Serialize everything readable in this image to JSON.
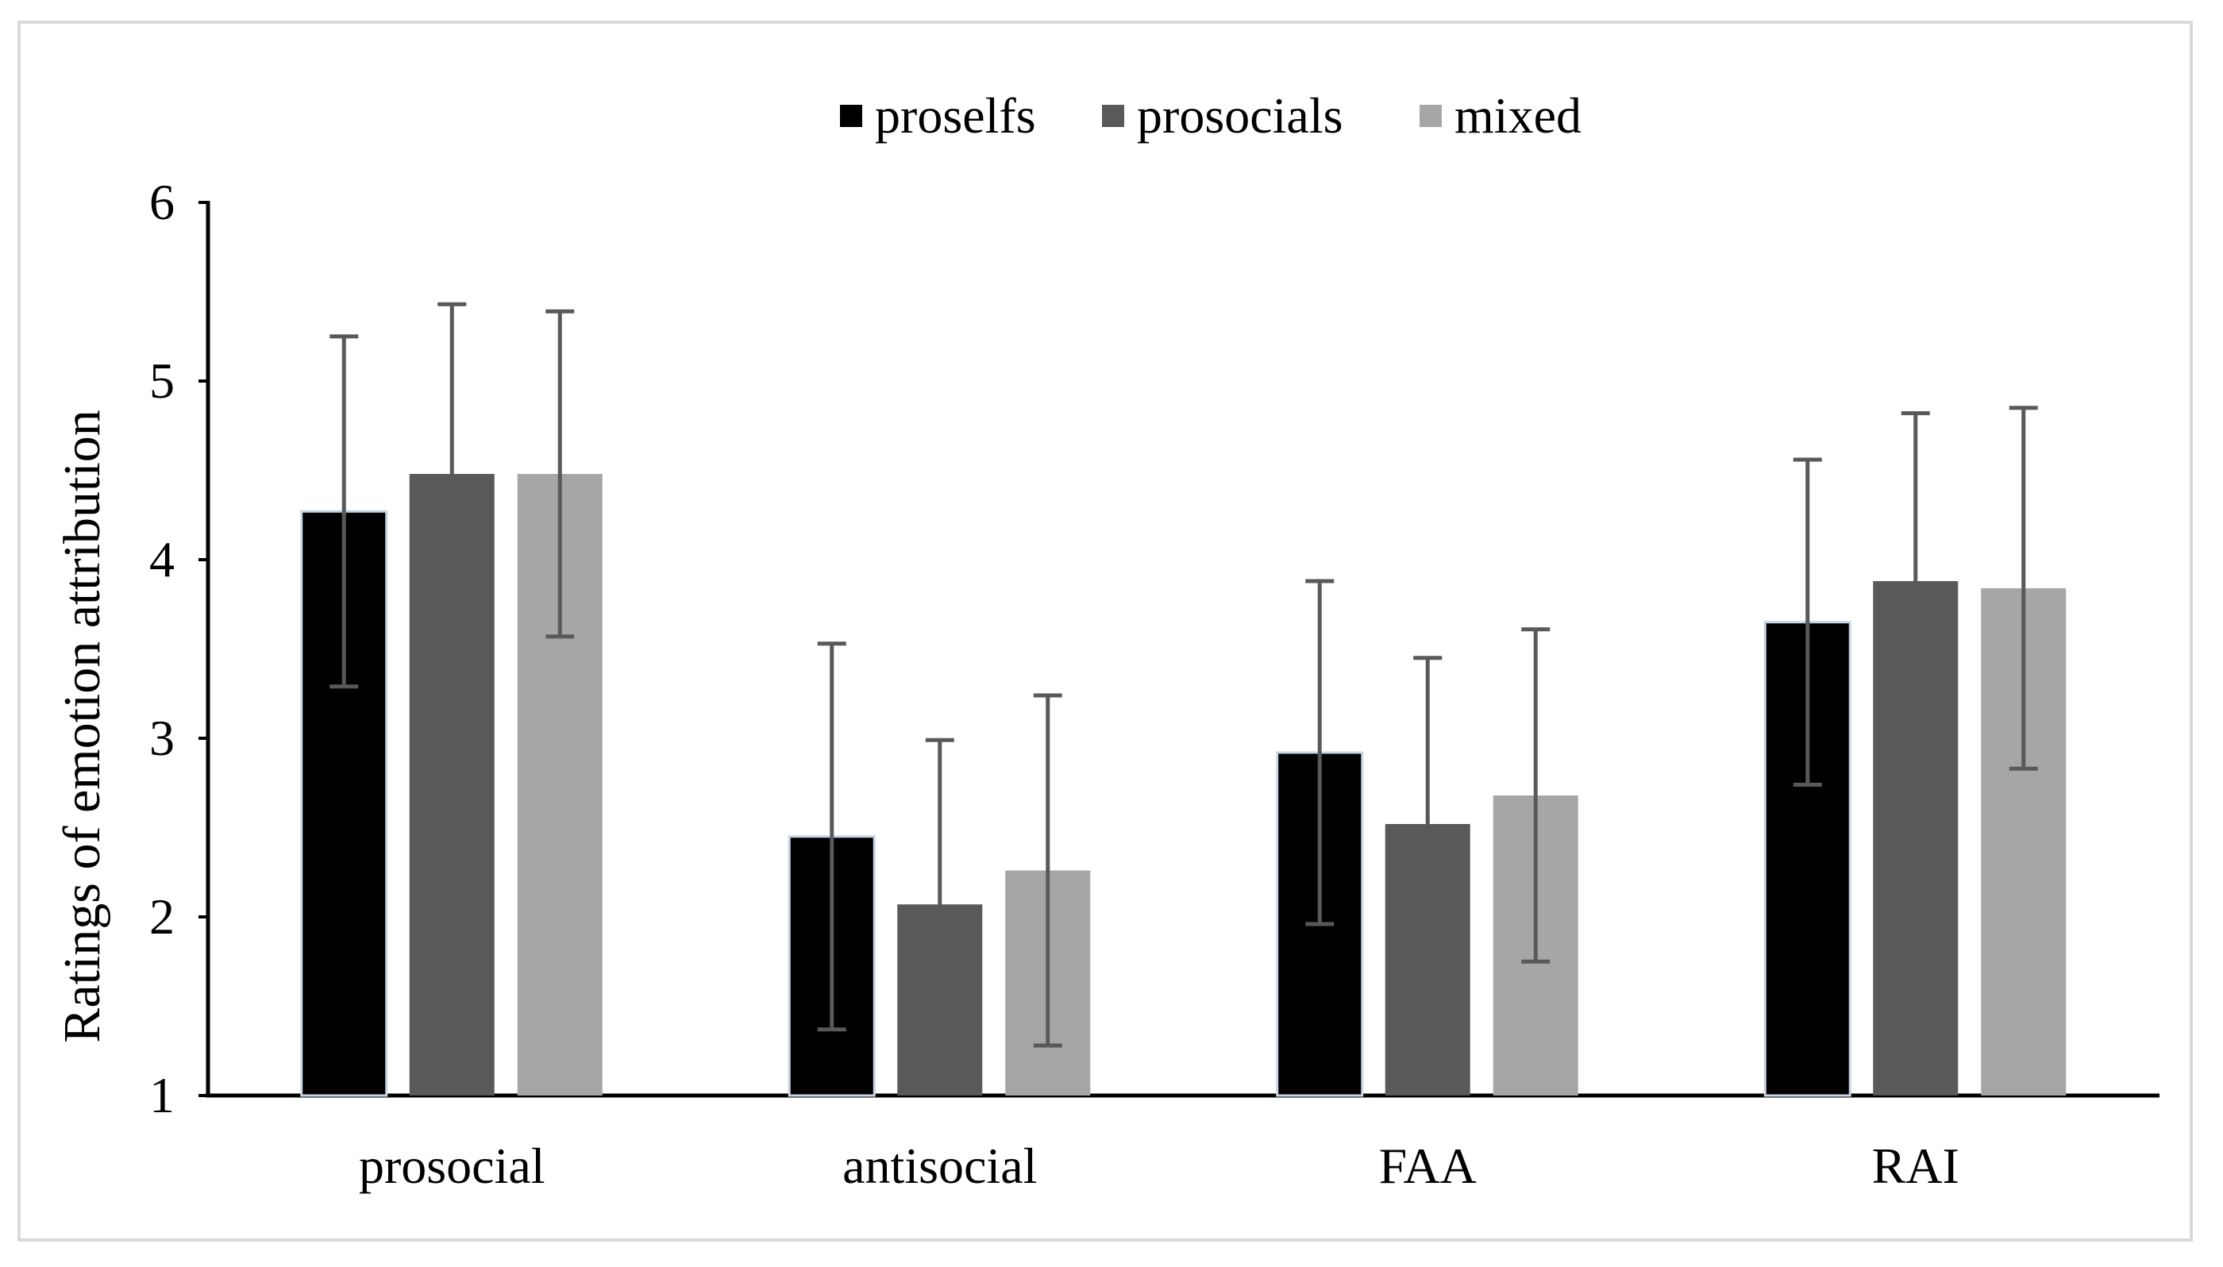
{
  "chart_data": {
    "type": "bar",
    "title": "",
    "xlabel": "",
    "ylabel": "Ratings of emotion attribution",
    "ylim": [
      1,
      6
    ],
    "yticks": [
      1,
      2,
      3,
      4,
      5,
      6
    ],
    "categories": [
      "prosocial",
      "antisocial",
      "FAA",
      "RAI"
    ],
    "legend_position": "top-center",
    "grid": false,
    "series": [
      {
        "name": "proselfs",
        "color": "#000000",
        "values": [
          4.27,
          2.45,
          2.92,
          3.65
        ],
        "errors": [
          0.98,
          1.08,
          0.96,
          0.91
        ]
      },
      {
        "name": "prosocials",
        "color": "#595959",
        "values": [
          4.48,
          2.07,
          2.52,
          3.88
        ],
        "errors": [
          0.95,
          0.92,
          0.93,
          0.94
        ]
      },
      {
        "name": "mixed",
        "color": "#a6a6a6",
        "values": [
          4.48,
          2.26,
          2.68,
          3.84
        ],
        "errors": [
          0.91,
          0.98,
          0.93,
          1.01
        ]
      }
    ]
  }
}
